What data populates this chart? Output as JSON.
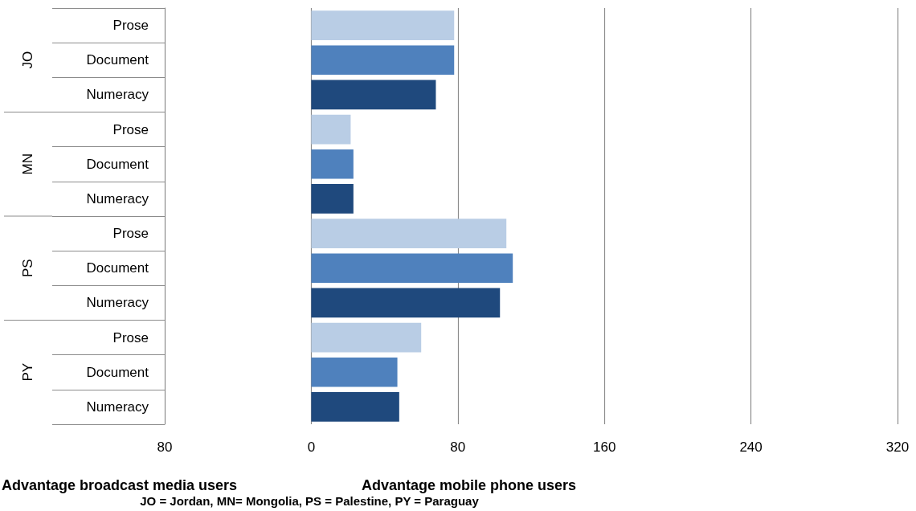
{
  "chart_data": {
    "type": "bar",
    "orientation": "horizontal",
    "categories": [
      "Prose",
      "Document",
      "Numeracy",
      "Prose",
      "Document",
      "Numeracy",
      "Prose",
      "Document",
      "Numeracy",
      "Prose",
      "Document",
      "Numeracy"
    ],
    "values": [
      78,
      78,
      68,
      21.5,
      23,
      23,
      106.5,
      110,
      103,
      60,
      47,
      48
    ],
    "colors": [
      "#b9cde5",
      "#4f81bd",
      "#1f497d",
      "#b9cde5",
      "#4f81bd",
      "#1f497d",
      "#b9cde5",
      "#4f81bd",
      "#1f497d",
      "#b9cde5",
      "#4f81bd",
      "#1f497d"
    ],
    "xlim": [
      -80,
      320
    ],
    "xticks": [
      {
        "value": -80,
        "label": "80"
      },
      0,
      80,
      160,
      240,
      320
    ],
    "grid": "x",
    "annotations": [
      "JO",
      "MN",
      "PS",
      "PY",
      "Advantage broadcast media users",
      "Advantage mobile phone users",
      "JO = Jordan, MN= Mongolia, PS = Palestine, PY = Paraguay"
    ]
  }
}
